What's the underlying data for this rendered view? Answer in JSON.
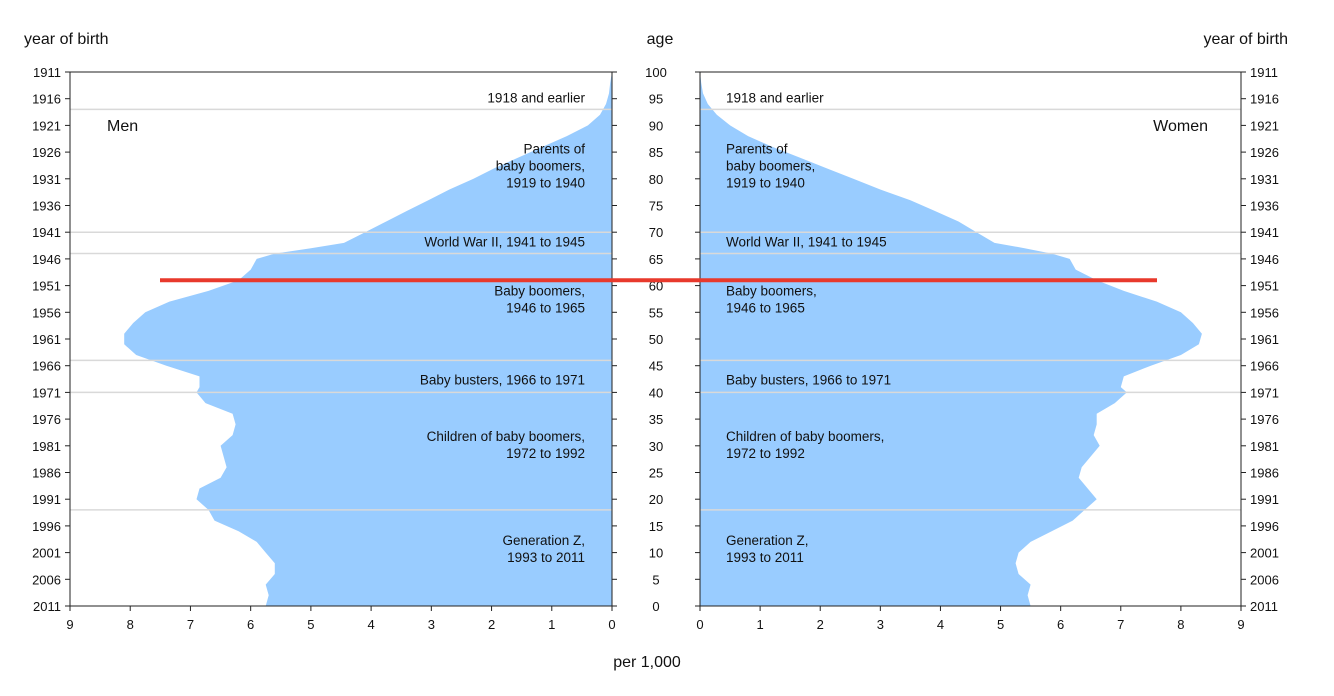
{
  "chart_data": {
    "type": "area",
    "title": "",
    "left_header": "year of birth",
    "center_header": "age",
    "right_header": "year of birth",
    "xlabel": "per 1,000",
    "left_label": "Men",
    "right_label": "Women",
    "xlim": [
      0,
      9
    ],
    "ylim": [
      0,
      100
    ],
    "x_ticks": [
      "0",
      "1",
      "2",
      "3",
      "4",
      "5",
      "6",
      "7",
      "8",
      "9"
    ],
    "age_ticks": [
      "0",
      "5",
      "10",
      "15",
      "20",
      "25",
      "30",
      "35",
      "40",
      "45",
      "50",
      "55",
      "60",
      "65",
      "70",
      "75",
      "80",
      "85",
      "90",
      "95",
      "100"
    ],
    "year_ticks": [
      "2011",
      "2006",
      "2001",
      "1996",
      "1991",
      "1986",
      "1981",
      "1976",
      "1971",
      "1966",
      "1961",
      "1956",
      "1951",
      "1946",
      "1941",
      "1936",
      "1931",
      "1926",
      "1921",
      "1916",
      "1911"
    ],
    "highlight_age": 61,
    "generation_boundaries": [
      18,
      40,
      46,
      66,
      70,
      93
    ],
    "generations": [
      {
        "lines": [
          "1918 and earlier"
        ],
        "age": 95.2
      },
      {
        "lines": [
          "Parents of",
          "baby boomers,",
          "1919 to 1940"
        ],
        "age": 82.5
      },
      {
        "lines": [
          "World War II, 1941 to 1945"
        ],
        "age": 68.3
      },
      {
        "lines": [
          "Baby boomers,",
          "1946 to 1965"
        ],
        "age": 57.5
      },
      {
        "lines": [
          "Baby busters, 1966 to 1971"
        ],
        "age": 42.4
      },
      {
        "lines": [
          "Children of baby boomers,",
          "1972 to 1992"
        ],
        "age": 30.2
      },
      {
        "lines": [
          "Generation Z,",
          "1993 to 2011"
        ],
        "age": 10.8
      }
    ],
    "series": [
      {
        "name": "Men",
        "ages": [
          0,
          2,
          4,
          6,
          8,
          10,
          12,
          14,
          16,
          18,
          20,
          22,
          24,
          26,
          28,
          30,
          32,
          34,
          36,
          38,
          40,
          41,
          43,
          45,
          47,
          49,
          51,
          53,
          55,
          57,
          59,
          61,
          63,
          64,
          65,
          66,
          67,
          68,
          70,
          72,
          74,
          76,
          78,
          80,
          82,
          84,
          86,
          88,
          90,
          92,
          94,
          96,
          98,
          100
        ],
        "values": [
          5.75,
          5.7,
          5.75,
          5.6,
          5.6,
          5.75,
          5.9,
          6.2,
          6.6,
          6.7,
          6.9,
          6.85,
          6.5,
          6.4,
          6.45,
          6.5,
          6.3,
          6.25,
          6.3,
          6.75,
          6.9,
          6.85,
          6.85,
          7.4,
          7.9,
          8.1,
          8.1,
          7.95,
          7.75,
          7.35,
          6.7,
          6.2,
          6.0,
          5.95,
          5.9,
          5.6,
          5.0,
          4.45,
          4.1,
          3.75,
          3.4,
          3.05,
          2.7,
          2.3,
          1.95,
          1.55,
          1.15,
          0.75,
          0.4,
          0.2,
          0.1,
          0.05,
          0.03,
          0.0
        ]
      },
      {
        "name": "Women",
        "ages": [
          0,
          2,
          4,
          6,
          8,
          10,
          12,
          14,
          16,
          18,
          20,
          22,
          24,
          26,
          28,
          30,
          32,
          34,
          36,
          38,
          40,
          41,
          43,
          45,
          47,
          49,
          51,
          53,
          55,
          57,
          59,
          61,
          63,
          64,
          65,
          66,
          67,
          68,
          70,
          72,
          74,
          76,
          78,
          80,
          82,
          84,
          86,
          88,
          90,
          92,
          94,
          96,
          98,
          100
        ],
        "values": [
          5.5,
          5.45,
          5.5,
          5.3,
          5.25,
          5.3,
          5.5,
          5.85,
          6.2,
          6.4,
          6.6,
          6.45,
          6.3,
          6.35,
          6.5,
          6.65,
          6.55,
          6.6,
          6.6,
          6.9,
          7.1,
          7.0,
          7.05,
          7.5,
          8.0,
          8.3,
          8.35,
          8.2,
          8.0,
          7.6,
          7.05,
          6.6,
          6.25,
          6.2,
          6.15,
          5.85,
          5.4,
          4.9,
          4.6,
          4.3,
          3.9,
          3.5,
          3.0,
          2.55,
          2.1,
          1.65,
          1.2,
          0.8,
          0.5,
          0.28,
          0.13,
          0.05,
          0.02,
          0.0
        ]
      }
    ],
    "colors": {
      "fill": "#99ccff",
      "highlight": "#e8392c",
      "axis": "#222222",
      "boundary": "#d9d9d9"
    }
  }
}
